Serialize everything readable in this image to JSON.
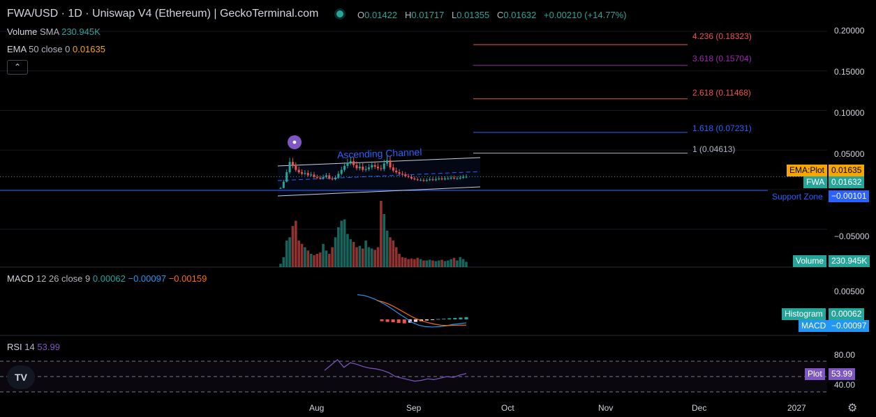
{
  "header": {
    "title": "FWA/USD · 1D · Uniswap V4 (Ethereum) | GeckoTerminal.com",
    "ohlc": [
      {
        "k": "O",
        "v": "0.01422"
      },
      {
        "k": "H",
        "v": "0.01717"
      },
      {
        "k": "L",
        "v": "0.01355"
      },
      {
        "k": "C",
        "v": "0.01632"
      }
    ],
    "change": "+0.00210 (+14.77%)",
    "collapse_icon": "chevron-up-icon"
  },
  "indicators": {
    "volume": {
      "name": "Volume",
      "type": "SMA",
      "value": "230.945K"
    },
    "ema": {
      "name": "EMA",
      "params": "50 close 0",
      "value": "0.01635"
    },
    "macd": {
      "name": "MACD",
      "params": "12 26 close 9",
      "v1": "0.00062",
      "v2": "−0.00097",
      "v3": "−0.00159"
    },
    "rsi": {
      "name": "RSI",
      "params": "14",
      "value": "53.99"
    }
  },
  "annotations": {
    "channel_label": "Ascending Channel",
    "support_label": "Support Zone"
  },
  "price_tags": {
    "ema": {
      "label": "EMA:Plot",
      "value": "0.01635"
    },
    "fwa": {
      "label": "FWA",
      "value": "0.01632"
    },
    "support": {
      "value": "−0.00101"
    },
    "volume": {
      "label": "Volume",
      "value": "230.945K"
    },
    "histogram": {
      "label": "Histogram",
      "value": "0.00062"
    },
    "macd": {
      "label": "MACD",
      "value": "−0.00097"
    },
    "rsi": {
      "label": "Plot",
      "value": "53.99"
    }
  },
  "y_axis": {
    "price_ticks": [
      "0.20000",
      "0.15000",
      "0.10000",
      "0.05000",
      "−0.05000"
    ],
    "macd_ticks": [
      "0.00500"
    ],
    "rsi_ticks": [
      "80.00",
      "40.00"
    ]
  },
  "x_axis": {
    "labels": [
      "Aug",
      "Sep",
      "Oct",
      "Nov",
      "Dec",
      "2027"
    ]
  },
  "colors": {
    "up": "#26a69a",
    "down": "#ef5350",
    "fib_4236": "#ef5350",
    "fib_3618": "#9c27b0",
    "fib_2618": "#ef5350",
    "fib_1618": "#2962ff",
    "fib_1": "#b2b5be",
    "macd_line": "#2196f3",
    "signal_line": "#ff6d00",
    "rsi_line": "#7e57c2"
  },
  "chart_data": {
    "type": "line",
    "fibonacci_levels": [
      {
        "ratio": "4.236",
        "price": 0.18323,
        "label": "4.236 (0.18323)"
      },
      {
        "ratio": "3.618",
        "price": 0.15704,
        "label": "3.618 (0.15704)"
      },
      {
        "ratio": "2.618",
        "price": 0.11468,
        "label": "2.618 (0.11468)"
      },
      {
        "ratio": "1.618",
        "price": 0.07231,
        "label": "1.618 (0.07231)"
      },
      {
        "ratio": "1",
        "price": 0.04613,
        "label": "1 (0.04613)"
      }
    ],
    "support_price": -0.00101,
    "ema_value": 0.01635,
    "last_close": 0.01632,
    "price_ylim": [
      -0.06,
      0.2
    ],
    "price_series": [
      0.002,
      0.01,
      0.022,
      0.035,
      0.03,
      0.025,
      0.022,
      0.02,
      0.021,
      0.018,
      0.019,
      0.016,
      0.015,
      0.014,
      0.016,
      0.018,
      0.014,
      0.013,
      0.015,
      0.02,
      0.025,
      0.03,
      0.034,
      0.036,
      0.031,
      0.027,
      0.029,
      0.025,
      0.026,
      0.028,
      0.031,
      0.029,
      0.027,
      0.026,
      0.033,
      0.037,
      0.028,
      0.024,
      0.022,
      0.02,
      0.019,
      0.017,
      0.016,
      0.014,
      0.013,
      0.012,
      0.012,
      0.011,
      0.012,
      0.013,
      0.012,
      0.013,
      0.014,
      0.013,
      0.014,
      0.014,
      0.015,
      0.014,
      0.014,
      0.015,
      0.016,
      0.01632
    ],
    "volume_series": [
      0.05,
      0.15,
      0.4,
      0.45,
      0.62,
      0.7,
      0.4,
      0.35,
      0.3,
      0.25,
      0.2,
      0.18,
      0.2,
      0.22,
      0.35,
      0.25,
      0.2,
      0.3,
      0.45,
      0.6,
      0.7,
      0.72,
      0.5,
      0.42,
      0.38,
      0.3,
      0.32,
      0.28,
      0.4,
      0.3,
      0.28,
      0.26,
      0.3,
      1.0,
      0.8,
      0.55,
      0.45,
      0.4,
      0.3,
      0.2,
      0.15,
      0.14,
      0.12,
      0.13,
      0.12,
      0.14,
      0.12,
      0.1,
      0.1,
      0.11,
      0.1,
      0.09,
      0.1,
      0.11,
      0.09,
      0.1,
      0.12,
      0.14,
      0.1,
      0.15,
      0.12,
      0.08
    ],
    "macd_line": [
      0.0068,
      0.0066,
      0.006,
      0.0052,
      0.0042,
      0.003,
      0.0017,
      0.0005,
      -0.0008,
      -0.0016,
      -0.002,
      -0.0021,
      -0.002,
      -0.0018,
      -0.0014,
      -0.0012,
      -0.00097
    ],
    "signal_line": [
      0.0052,
      0.0048,
      0.0041,
      0.0032,
      0.0022,
      0.0012,
      0.0003,
      -0.0004,
      -0.0009,
      -0.0013,
      -0.0016,
      -0.0017,
      -0.00165,
      -0.0016,
      -0.00159
    ],
    "histogram": [
      -0.0005,
      -0.0007,
      -0.0008,
      -0.001,
      -0.0011,
      -0.0009,
      -0.0007,
      -0.0005,
      -0.0003,
      -0.0001,
      0.0001,
      0.0002,
      0.0003,
      0.0004,
      0.0005,
      0.00062
    ],
    "rsi": [
      58,
      65,
      72,
      62,
      68,
      66,
      63,
      61,
      60,
      58,
      55,
      50,
      48,
      46,
      44,
      45,
      47,
      46,
      48,
      50,
      49,
      52,
      53.99
    ]
  }
}
